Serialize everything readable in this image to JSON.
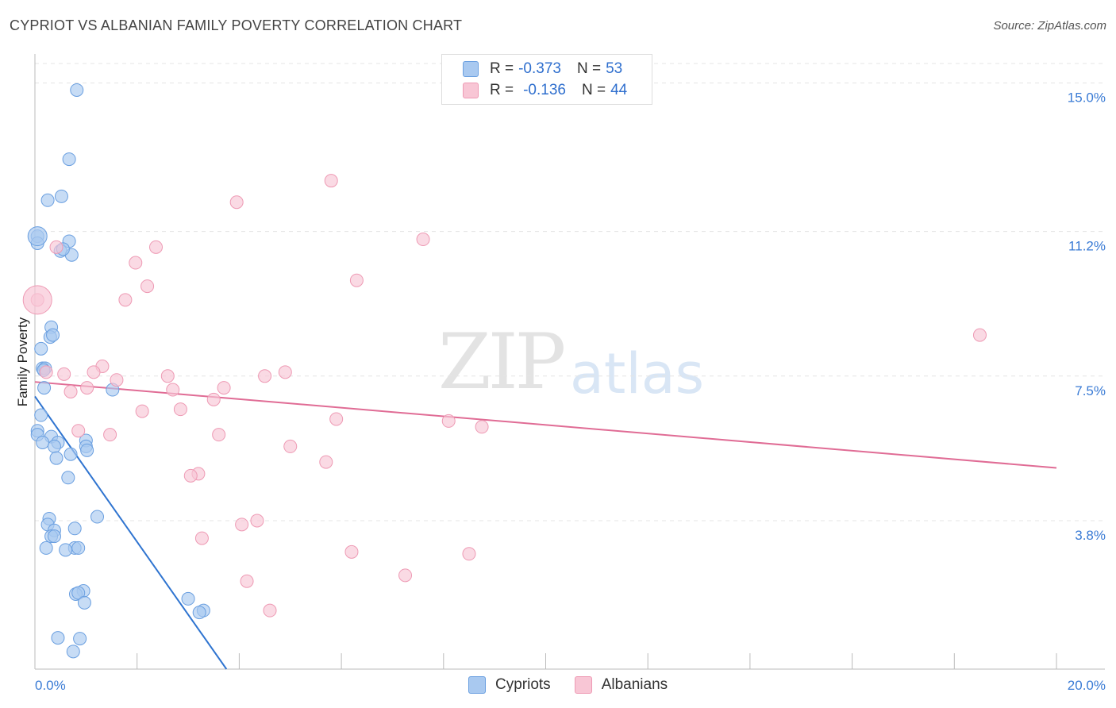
{
  "title": "CYPRIOT VS ALBANIAN FAMILY POVERTY CORRELATION CHART",
  "source": "Source: ZipAtlas.com",
  "watermark": {
    "zip": "ZIP",
    "atlas": "atlas"
  },
  "legend": {
    "r_label": "R =",
    "n_label": "N =",
    "rows": [
      {
        "r": "-0.373",
        "n": "53",
        "color": "#a9c9f0",
        "border": "#6a9fe0"
      },
      {
        "r": "-0.136",
        "n": "44",
        "color": "#f8c6d5",
        "border": "#ee9ab4"
      }
    ]
  },
  "bottom_legend": [
    {
      "label": "Cypriots",
      "color": "#a9c9f0",
      "border": "#6a9fe0"
    },
    {
      "label": "Albanians",
      "color": "#f8c6d5",
      "border": "#ee9ab4"
    }
  ],
  "chart_data": {
    "type": "scatter",
    "title": "CYPRIOT VS ALBANIAN FAMILY POVERTY CORRELATION CHART",
    "xlabel": "",
    "ylabel": "Family Poverty",
    "xlim": [
      0,
      20
    ],
    "ylim": [
      0,
      15.5
    ],
    "x_tick_labels": [
      "0.0%",
      "20.0%"
    ],
    "y_ticks": [
      3.8,
      7.5,
      11.2,
      15.0
    ],
    "y_tick_labels": [
      "3.8%",
      "7.5%",
      "11.2%",
      "15.0%"
    ],
    "grid": true,
    "series": [
      {
        "name": "Cypriots",
        "color": "#6a9fe0",
        "fill": "#a9c9f0",
        "trend": {
          "x": [
            0.0,
            3.75
          ],
          "y": [
            6.98,
            0.0
          ],
          "color": "#2f74d0"
        },
        "points": [
          [
            0.82,
            14.82
          ],
          [
            0.67,
            13.05
          ],
          [
            0.25,
            12.0
          ],
          [
            0.52,
            12.1
          ],
          [
            0.05,
            11.08
          ],
          [
            0.05,
            10.9
          ],
          [
            0.67,
            10.95
          ],
          [
            0.5,
            10.7
          ],
          [
            0.72,
            10.6
          ],
          [
            0.32,
            8.75
          ],
          [
            0.3,
            8.5
          ],
          [
            0.35,
            8.55
          ],
          [
            0.12,
            8.2
          ],
          [
            0.15,
            7.7
          ],
          [
            0.2,
            7.7
          ],
          [
            0.17,
            7.65
          ],
          [
            0.18,
            7.2
          ],
          [
            1.52,
            7.15
          ],
          [
            0.12,
            6.5
          ],
          [
            0.05,
            6.1
          ],
          [
            0.05,
            6.0
          ],
          [
            0.32,
            5.95
          ],
          [
            0.15,
            5.8
          ],
          [
            0.45,
            5.8
          ],
          [
            1.0,
            5.85
          ],
          [
            0.38,
            5.7
          ],
          [
            1.0,
            5.7
          ],
          [
            1.02,
            5.6
          ],
          [
            0.7,
            5.5
          ],
          [
            0.42,
            5.4
          ],
          [
            0.65,
            4.9
          ],
          [
            0.28,
            3.85
          ],
          [
            1.22,
            3.9
          ],
          [
            0.25,
            3.7
          ],
          [
            0.78,
            3.6
          ],
          [
            0.38,
            3.55
          ],
          [
            0.32,
            3.4
          ],
          [
            0.38,
            3.4
          ],
          [
            0.22,
            3.1
          ],
          [
            0.78,
            3.1
          ],
          [
            0.85,
            3.1
          ],
          [
            0.6,
            3.05
          ],
          [
            0.95,
            2.0
          ],
          [
            0.8,
            1.92
          ],
          [
            0.85,
            1.95
          ],
          [
            0.97,
            1.7
          ],
          [
            3.0,
            1.8
          ],
          [
            3.3,
            1.5
          ],
          [
            3.22,
            1.45
          ],
          [
            0.45,
            0.8
          ],
          [
            0.88,
            0.78
          ],
          [
            0.75,
            0.45
          ],
          [
            0.55,
            10.75
          ]
        ]
      },
      {
        "name": "Albanians",
        "color": "#ee9ab4",
        "fill": "#f8c6d5",
        "trend": {
          "x": [
            0.0,
            20.0
          ],
          "y": [
            7.35,
            5.15
          ],
          "color": "#e06c95"
        },
        "points": [
          [
            0.05,
            9.45
          ],
          [
            0.42,
            10.8
          ],
          [
            5.8,
            12.5
          ],
          [
            3.95,
            11.95
          ],
          [
            7.6,
            11.0
          ],
          [
            2.37,
            10.8
          ],
          [
            1.97,
            10.4
          ],
          [
            6.3,
            9.95
          ],
          [
            2.2,
            9.8
          ],
          [
            1.77,
            9.45
          ],
          [
            18.5,
            8.55
          ],
          [
            1.32,
            7.75
          ],
          [
            0.22,
            7.6
          ],
          [
            0.57,
            7.55
          ],
          [
            1.15,
            7.6
          ],
          [
            4.9,
            7.6
          ],
          [
            4.5,
            7.5
          ],
          [
            2.6,
            7.5
          ],
          [
            1.6,
            7.4
          ],
          [
            1.02,
            7.2
          ],
          [
            2.7,
            7.15
          ],
          [
            3.7,
            7.2
          ],
          [
            0.7,
            7.1
          ],
          [
            3.5,
            6.9
          ],
          [
            2.85,
            6.65
          ],
          [
            2.1,
            6.6
          ],
          [
            5.9,
            6.4
          ],
          [
            8.1,
            6.35
          ],
          [
            8.75,
            6.2
          ],
          [
            0.85,
            6.1
          ],
          [
            1.47,
            6.0
          ],
          [
            3.6,
            6.0
          ],
          [
            5.0,
            5.7
          ],
          [
            5.7,
            5.3
          ],
          [
            3.2,
            5.0
          ],
          [
            3.05,
            4.95
          ],
          [
            4.05,
            3.7
          ],
          [
            4.35,
            3.8
          ],
          [
            3.27,
            3.35
          ],
          [
            6.2,
            3.0
          ],
          [
            8.5,
            2.95
          ],
          [
            7.25,
            2.4
          ],
          [
            4.15,
            2.25
          ],
          [
            4.6,
            1.5
          ]
        ]
      }
    ]
  }
}
